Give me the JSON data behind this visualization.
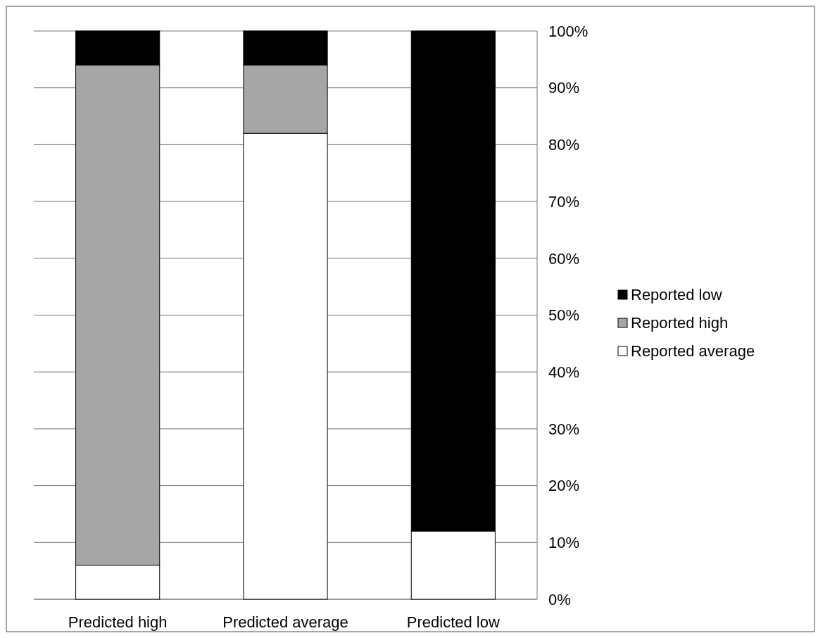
{
  "chart_data": {
    "type": "bar",
    "stacked": true,
    "categories": [
      "Predicted high",
      "Predicted average",
      "Predicted low"
    ],
    "series": [
      {
        "name": "Reported average",
        "color": "#ffffff",
        "values": [
          6,
          82,
          12
        ]
      },
      {
        "name": "Reported high",
        "color": "#a6a6a6",
        "values": [
          88,
          12,
          0
        ]
      },
      {
        "name": "Reported low",
        "color": "#000000",
        "values": [
          6,
          6,
          88
        ]
      }
    ],
    "ylim": [
      0,
      100
    ],
    "yticks": [
      {
        "value": 0,
        "label": "0%"
      },
      {
        "value": 10,
        "label": "10%"
      },
      {
        "value": 20,
        "label": "20%"
      },
      {
        "value": 30,
        "label": "30%"
      },
      {
        "value": 40,
        "label": "40%"
      },
      {
        "value": 50,
        "label": "50%"
      },
      {
        "value": 60,
        "label": "60%"
      },
      {
        "value": 70,
        "label": "70%"
      },
      {
        "value": 80,
        "label": "80%"
      },
      {
        "value": 90,
        "label": "90%"
      },
      {
        "value": 100,
        "label": "100%"
      }
    ],
    "grid": "y",
    "legend": "right"
  }
}
